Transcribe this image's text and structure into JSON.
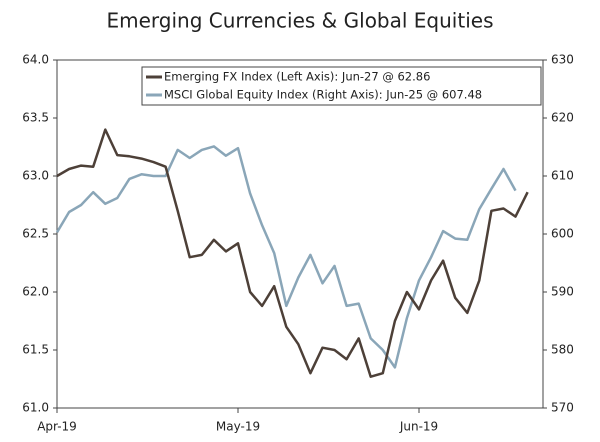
{
  "chart_data": {
    "type": "line",
    "title": "Emerging Currencies & Global Equities",
    "categories": [
      "Apr-19",
      null,
      null,
      null,
      null,
      null,
      null,
      null,
      null,
      null,
      null,
      null,
      null,
      null,
      null,
      "May-19",
      null,
      null,
      null,
      null,
      null,
      null,
      null,
      null,
      null,
      null,
      null,
      null,
      null,
      null,
      "Jun-19",
      null,
      null,
      null,
      null,
      null,
      null,
      null,
      null,
      null
    ],
    "series": [
      {
        "name": "Emerging FX Index (Left Axis): Jun-27 @ 62.86",
        "color": "#4d4038",
        "axis": "y",
        "values": [
          63.0,
          63.06,
          63.09,
          63.08,
          63.4,
          63.18,
          63.17,
          63.15,
          63.12,
          63.08,
          62.7,
          62.3,
          62.32,
          62.45,
          62.35,
          62.42,
          62.0,
          61.88,
          62.05,
          61.7,
          61.55,
          61.3,
          61.52,
          61.5,
          61.42,
          61.6,
          61.27,
          61.3,
          61.75,
          62.0,
          61.85,
          62.1,
          62.27,
          61.95,
          61.82,
          62.1,
          62.7,
          62.72,
          62.65,
          62.86
        ]
      },
      {
        "name": "MSCI Global Equity Index (Right Axis): Jun-25 @ 607.48",
        "color": "#8aa6b8",
        "axis": "y2",
        "values": [
          600.3,
          603.8,
          605,
          607.2,
          605.2,
          606.2,
          609.5,
          610.3,
          610,
          610,
          614.5,
          613.1,
          614.5,
          615.1,
          613.5,
          614.8,
          607,
          601.5,
          596.7,
          587.6,
          592.5,
          596.4,
          591.5,
          594.5,
          587.6,
          588,
          582,
          580,
          577,
          585.5,
          592,
          596,
          600.5,
          599.2,
          599,
          604.3,
          607.8,
          611.2,
          607.48,
          null
        ]
      }
    ],
    "ylim": [
      61,
      64
    ],
    "yticks": [
      {
        "value": 61,
        "label": "61.0"
      },
      61.5,
      {
        "value": 62,
        "label": "62.0"
      },
      62.5,
      {
        "value": 63,
        "label": "63.0"
      },
      63.5,
      {
        "value": 64,
        "label": "64.0"
      }
    ],
    "y2lim": [
      570,
      630
    ],
    "y2ticks": [
      570,
      580,
      590,
      600,
      610,
      620,
      630
    ],
    "legend": "top-right"
  }
}
